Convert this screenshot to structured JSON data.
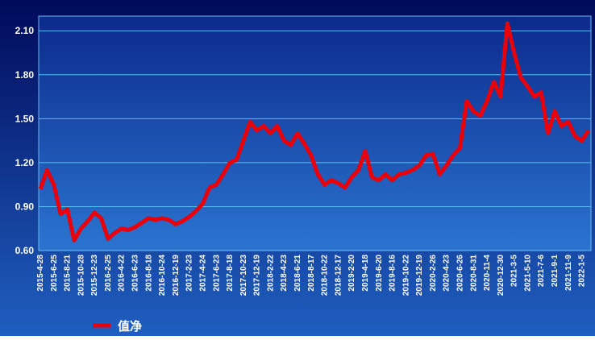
{
  "chart_data": {
    "type": "line",
    "categories": [
      "2015-4-28",
      null,
      "2015-6-25",
      null,
      "2015-8-21",
      null,
      "2015-10-28",
      null,
      "2015-12-23",
      null,
      "2016-2-25",
      null,
      "2016-4-22",
      null,
      "2016-6-23",
      null,
      "2016-8-18",
      null,
      "2016-10-24",
      null,
      "2016-12-19",
      null,
      "2017-2-23",
      null,
      "2017-4-24",
      null,
      "2017-6-23",
      null,
      "2017-8-18",
      null,
      "2017-10-23",
      null,
      "2017-12-19",
      null,
      "2018-2-22",
      null,
      "2018-4-23",
      null,
      "2018-6-21",
      null,
      "2018-8-17",
      null,
      "2018-10-22",
      null,
      "2018-12-17",
      null,
      "2019-2-20",
      null,
      "2019-4-18",
      null,
      "2019-6-20",
      null,
      "2019-8-16",
      null,
      "2019-10-22",
      null,
      "2019-12-19",
      null,
      "2020-2-26",
      null,
      "2020-4-23",
      null,
      "2020-6-26",
      null,
      "2020-8-31",
      null,
      "2020-11-4",
      null,
      "2020-12-30",
      null,
      "2021-3-5",
      null,
      "2021-5-10",
      null,
      "2021-7-6",
      null,
      "2021-9-1",
      null,
      "2021-11-9",
      null,
      "2022-1-5",
      null
    ],
    "series": [
      {
        "name": "值净",
        "color": "#e8000b",
        "values": [
          1.02,
          1.15,
          1.05,
          0.85,
          0.88,
          0.67,
          0.75,
          0.8,
          0.86,
          0.82,
          0.68,
          0.72,
          0.75,
          0.74,
          0.76,
          0.79,
          0.82,
          0.81,
          0.82,
          0.81,
          0.78,
          0.8,
          0.83,
          0.87,
          0.92,
          1.03,
          1.05,
          1.12,
          1.2,
          1.22,
          1.35,
          1.48,
          1.42,
          1.45,
          1.4,
          1.45,
          1.35,
          1.32,
          1.4,
          1.33,
          1.25,
          1.12,
          1.05,
          1.08,
          1.06,
          1.03,
          1.1,
          1.15,
          1.28,
          1.1,
          1.08,
          1.12,
          1.08,
          1.12,
          1.13,
          1.15,
          1.18,
          1.25,
          1.26,
          1.12,
          1.18,
          1.25,
          1.3,
          1.62,
          1.55,
          1.52,
          1.62,
          1.75,
          1.65,
          2.15,
          1.95,
          1.78,
          1.72,
          1.65,
          1.68,
          1.4,
          1.55,
          1.45,
          1.48,
          1.38,
          1.35,
          1.42
        ]
      }
    ],
    "ylim": [
      0.6,
      2.2
    ],
    "yticks": [
      {
        "value": 0.6,
        "label": "0.60"
      },
      {
        "value": 0.9,
        "label": "0.90"
      },
      {
        "value": 1.2,
        "label": "1.20"
      },
      {
        "value": 1.5,
        "label": "1.50"
      },
      {
        "value": 1.8,
        "label": "1.80"
      },
      {
        "value": 2.1,
        "label": "2.10"
      }
    ],
    "grid": true
  }
}
